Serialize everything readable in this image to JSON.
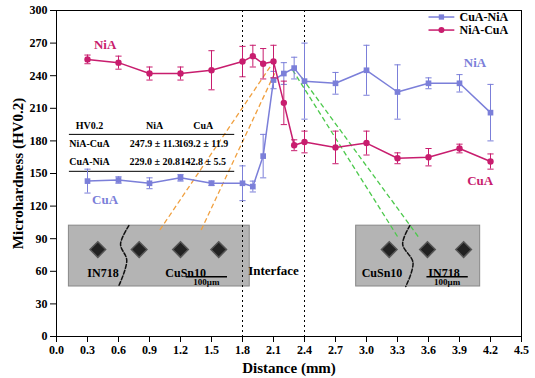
{
  "chart_data": {
    "type": "line",
    "x_label": "Distance (mm)",
    "y_label": "Microhardness (HV0.2)",
    "xlim": [
      0,
      4.5
    ],
    "ylim": [
      0,
      300
    ],
    "xticks": [
      {
        "value": 0,
        "label": "0.0"
      },
      0.3,
      0.6,
      0.9,
      1.2,
      1.5,
      1.8,
      2.1,
      2.4,
      2.7,
      {
        "value": 3,
        "label": "3.0"
      },
      3.3,
      3.6,
      3.9,
      4.2,
      4.5
    ],
    "yticks": [
      0,
      30,
      60,
      90,
      120,
      150,
      180,
      210,
      240,
      270,
      300
    ],
    "legend": "top-right",
    "x": [
      0.3,
      0.6,
      0.9,
      1.2,
      1.5,
      1.8,
      1.9,
      2.0,
      2.1,
      2.2,
      2.3,
      2.4,
      2.7,
      3.0,
      3.3,
      3.6,
      3.9,
      4.2
    ],
    "series": [
      {
        "name": "CuA-NiA",
        "color": "#7b7fd9",
        "marker": "square",
        "values": [
          143,
          144,
          141,
          146,
          141,
          141,
          138,
          166,
          236,
          242,
          247,
          235,
          233,
          245,
          225,
          233,
          233,
          206
        ],
        "errors": [
          11,
          3,
          5,
          3,
          2,
          16,
          5,
          20,
          8,
          10,
          10,
          35,
          10,
          23,
          25,
          5,
          8,
          26
        ],
        "end_labels": [
          "CuA",
          "NiA"
        ]
      },
      {
        "name": "NiA-CuA",
        "color": "#c81d6e",
        "marker": "circle",
        "values": [
          255,
          252,
          242,
          242,
          245,
          253,
          258,
          251,
          253,
          215,
          176,
          179,
          174,
          178,
          164,
          165,
          173,
          161
        ],
        "errors": [
          4,
          6,
          6,
          6,
          18,
          14,
          10,
          14,
          15,
          20,
          5,
          10,
          15,
          11,
          5,
          8,
          4,
          7
        ],
        "end_labels": [
          "NiA",
          "CuA"
        ]
      }
    ],
    "interface": {
      "label": "Interface",
      "x": [
        1.8,
        2.4
      ]
    },
    "table": {
      "header": [
        "HV0.2",
        "NiA",
        "CuA"
      ],
      "rows": [
        [
          "NiA-CuA",
          "247.9 ± 11.3",
          "169.2 ± 11.9"
        ],
        [
          "CuA-NiA",
          "229.0 ± 20.8",
          "142.8 ± 5.5"
        ]
      ]
    },
    "insets": [
      {
        "labels": [
          "IN718",
          "CuSn10"
        ],
        "scale_bar": "100μm"
      },
      {
        "labels": [
          "CuSn10",
          "IN718"
        ],
        "scale_bar": "100μm"
      }
    ]
  }
}
